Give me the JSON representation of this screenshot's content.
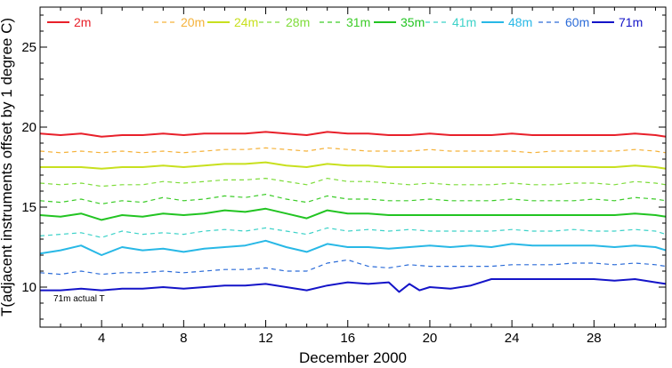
{
  "chart_data": {
    "type": "line",
    "title": "",
    "xlabel": "December 2000",
    "ylabel": "T(adjacent instruments offset by 1 degree C)",
    "xlim": [
      1,
      31.5
    ],
    "ylim": [
      7.5,
      27.5
    ],
    "xticks": [
      4,
      8,
      12,
      16,
      20,
      24,
      28
    ],
    "yticks": [
      10,
      15,
      20,
      25
    ],
    "grid": false,
    "legend_position": "top",
    "annotation": "71m actual T",
    "series": [
      {
        "name": "2m",
        "color": "#e8202a",
        "style": "solid",
        "x": [
          1,
          2,
          3,
          4,
          5,
          6,
          7,
          8,
          9,
          10,
          11,
          12,
          13,
          14,
          15,
          16,
          17,
          18,
          19,
          20,
          21,
          22,
          23,
          24,
          25,
          26,
          27,
          28,
          29,
          30,
          31,
          31.5
        ],
        "values": [
          19.6,
          19.5,
          19.6,
          19.4,
          19.5,
          19.5,
          19.6,
          19.5,
          19.6,
          19.6,
          19.6,
          19.7,
          19.6,
          19.5,
          19.7,
          19.6,
          19.6,
          19.5,
          19.5,
          19.6,
          19.5,
          19.5,
          19.5,
          19.6,
          19.5,
          19.5,
          19.5,
          19.5,
          19.5,
          19.6,
          19.5,
          19.4
        ]
      },
      {
        "name": "20m",
        "color": "#f5b23a",
        "style": "dashed",
        "x": [
          1,
          2,
          3,
          4,
          5,
          6,
          7,
          8,
          9,
          10,
          11,
          12,
          13,
          14,
          15,
          16,
          17,
          18,
          19,
          20,
          21,
          22,
          23,
          24,
          25,
          26,
          27,
          28,
          29,
          30,
          31,
          31.5
        ],
        "values": [
          18.5,
          18.4,
          18.5,
          18.4,
          18.5,
          18.4,
          18.5,
          18.4,
          18.5,
          18.6,
          18.6,
          18.7,
          18.6,
          18.5,
          18.7,
          18.6,
          18.5,
          18.5,
          18.5,
          18.6,
          18.5,
          18.5,
          18.5,
          18.5,
          18.4,
          18.5,
          18.5,
          18.5,
          18.5,
          18.6,
          18.5,
          18.4
        ]
      },
      {
        "name": "24m",
        "color": "#c8e01e",
        "style": "solid",
        "x": [
          1,
          2,
          3,
          4,
          5,
          6,
          7,
          8,
          9,
          10,
          11,
          12,
          13,
          14,
          15,
          16,
          17,
          18,
          19,
          20,
          21,
          22,
          23,
          24,
          25,
          26,
          27,
          28,
          29,
          30,
          31,
          31.5
        ],
        "values": [
          17.5,
          17.5,
          17.5,
          17.4,
          17.5,
          17.5,
          17.6,
          17.5,
          17.6,
          17.7,
          17.7,
          17.8,
          17.6,
          17.5,
          17.7,
          17.6,
          17.6,
          17.5,
          17.5,
          17.5,
          17.5,
          17.5,
          17.5,
          17.5,
          17.5,
          17.5,
          17.5,
          17.5,
          17.5,
          17.6,
          17.5,
          17.4
        ]
      },
      {
        "name": "28m",
        "color": "#7edc3a",
        "style": "dashed",
        "x": [
          1,
          2,
          3,
          4,
          5,
          6,
          7,
          8,
          9,
          10,
          11,
          12,
          13,
          14,
          15,
          16,
          17,
          18,
          19,
          20,
          21,
          22,
          23,
          24,
          25,
          26,
          27,
          28,
          29,
          30,
          31,
          31.5
        ],
        "values": [
          16.5,
          16.4,
          16.5,
          16.3,
          16.4,
          16.4,
          16.6,
          16.5,
          16.6,
          16.7,
          16.7,
          16.8,
          16.6,
          16.4,
          16.8,
          16.6,
          16.6,
          16.5,
          16.4,
          16.5,
          16.4,
          16.4,
          16.4,
          16.5,
          16.4,
          16.4,
          16.5,
          16.5,
          16.4,
          16.6,
          16.5,
          16.4
        ]
      },
      {
        "name": "31m",
        "color": "#3ccc28",
        "style": "dashed",
        "x": [
          1,
          2,
          3,
          4,
          5,
          6,
          7,
          8,
          9,
          10,
          11,
          12,
          13,
          14,
          15,
          16,
          17,
          18,
          19,
          20,
          21,
          22,
          23,
          24,
          25,
          26,
          27,
          28,
          29,
          30,
          31,
          31.5
        ],
        "values": [
          15.4,
          15.3,
          15.5,
          15.2,
          15.4,
          15.3,
          15.6,
          15.4,
          15.5,
          15.7,
          15.6,
          15.8,
          15.5,
          15.3,
          15.7,
          15.5,
          15.5,
          15.4,
          15.4,
          15.5,
          15.4,
          15.4,
          15.4,
          15.5,
          15.4,
          15.4,
          15.4,
          15.5,
          15.4,
          15.6,
          15.5,
          15.4
        ]
      },
      {
        "name": "35m",
        "color": "#22c422",
        "style": "solid",
        "x": [
          1,
          2,
          3,
          4,
          5,
          6,
          7,
          8,
          9,
          10,
          11,
          12,
          13,
          14,
          15,
          16,
          17,
          18,
          19,
          20,
          21,
          22,
          23,
          24,
          25,
          26,
          27,
          28,
          29,
          30,
          31,
          31.5
        ],
        "values": [
          14.5,
          14.4,
          14.6,
          14.2,
          14.5,
          14.4,
          14.6,
          14.5,
          14.6,
          14.8,
          14.7,
          14.9,
          14.6,
          14.3,
          14.8,
          14.6,
          14.6,
          14.5,
          14.5,
          14.5,
          14.5,
          14.5,
          14.5,
          14.5,
          14.5,
          14.5,
          14.5,
          14.5,
          14.5,
          14.6,
          14.5,
          14.4
        ]
      },
      {
        "name": "41m",
        "color": "#3cd2c8",
        "style": "dashed",
        "x": [
          1,
          2,
          3,
          4,
          5,
          6,
          7,
          8,
          9,
          10,
          11,
          12,
          13,
          14,
          15,
          16,
          17,
          18,
          19,
          20,
          21,
          22,
          23,
          24,
          25,
          26,
          27,
          28,
          29,
          30,
          31,
          31.5
        ],
        "values": [
          13.2,
          13.3,
          13.4,
          13.1,
          13.5,
          13.3,
          13.4,
          13.3,
          13.5,
          13.6,
          13.5,
          13.7,
          13.5,
          13.3,
          13.7,
          13.5,
          13.6,
          13.5,
          13.6,
          13.5,
          13.5,
          13.5,
          13.5,
          13.6,
          13.5,
          13.5,
          13.6,
          13.5,
          13.5,
          13.6,
          13.5,
          13.3
        ]
      },
      {
        "name": "48m",
        "color": "#28b8e6",
        "style": "solid",
        "x": [
          1,
          2,
          3,
          4,
          5,
          6,
          7,
          8,
          9,
          10,
          11,
          12,
          13,
          14,
          15,
          16,
          17,
          18,
          19,
          20,
          21,
          22,
          23,
          24,
          25,
          26,
          27,
          28,
          29,
          30,
          31,
          31.5
        ],
        "values": [
          12.1,
          12.3,
          12.6,
          12.0,
          12.5,
          12.3,
          12.4,
          12.2,
          12.4,
          12.5,
          12.6,
          12.9,
          12.5,
          12.2,
          12.7,
          12.5,
          12.5,
          12.4,
          12.5,
          12.6,
          12.5,
          12.6,
          12.5,
          12.7,
          12.6,
          12.6,
          12.6,
          12.6,
          12.5,
          12.6,
          12.5,
          12.3
        ]
      },
      {
        "name": "60m",
        "color": "#2c6cd8",
        "style": "dashed",
        "x": [
          1,
          2,
          3,
          4,
          5,
          6,
          7,
          8,
          9,
          10,
          11,
          12,
          13,
          14,
          15,
          16,
          17,
          18,
          19,
          20,
          21,
          22,
          23,
          24,
          25,
          26,
          27,
          28,
          29,
          30,
          31,
          31.5
        ],
        "values": [
          10.9,
          10.8,
          11.0,
          10.8,
          10.9,
          10.9,
          11.0,
          10.9,
          11.0,
          11.1,
          11.1,
          11.2,
          11.0,
          11.0,
          11.5,
          11.7,
          11.3,
          11.2,
          11.4,
          11.3,
          11.3,
          11.3,
          11.3,
          11.4,
          11.4,
          11.4,
          11.5,
          11.5,
          11.4,
          11.5,
          11.4,
          11.3
        ]
      },
      {
        "name": "71m",
        "color": "#1414c8",
        "style": "solid",
        "x": [
          1,
          2,
          3,
          4,
          5,
          6,
          7,
          8,
          9,
          10,
          11,
          12,
          13,
          14,
          15,
          16,
          17,
          18,
          18.5,
          19,
          19.5,
          20,
          21,
          22,
          23,
          24,
          25,
          26,
          27,
          28,
          29,
          30,
          31,
          31.5
        ],
        "values": [
          9.8,
          9.8,
          9.9,
          9.8,
          9.9,
          9.9,
          10.0,
          9.9,
          10.0,
          10.1,
          10.1,
          10.2,
          10.0,
          9.8,
          10.1,
          10.3,
          10.2,
          10.3,
          9.7,
          10.2,
          9.8,
          10.0,
          9.9,
          10.1,
          10.5,
          10.5,
          10.5,
          10.5,
          10.5,
          10.5,
          10.4,
          10.5,
          10.3,
          10.2
        ]
      }
    ]
  }
}
